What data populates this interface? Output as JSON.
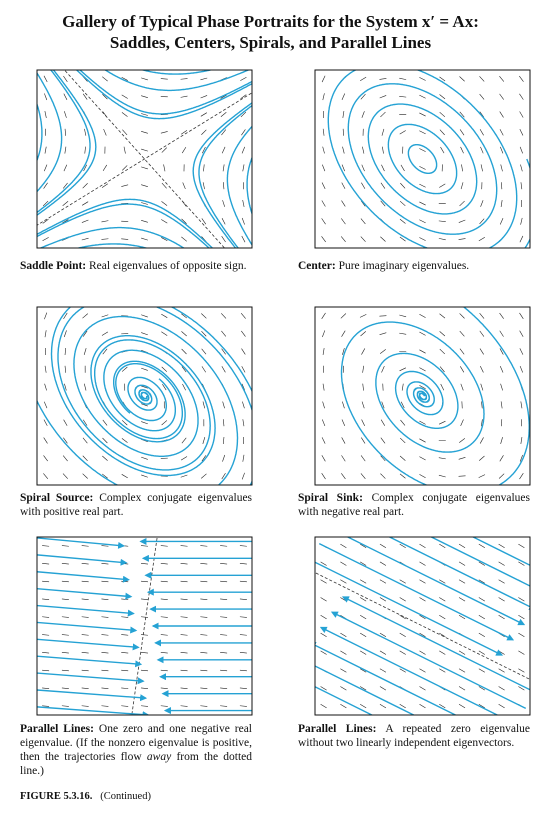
{
  "header": {
    "title_line1": "Gallery of Typical Phase Portraits for the System x′ = Ax:",
    "title_line2": "Saddles, Centers, Spirals, and Parallel Lines"
  },
  "panels": [
    {
      "label": "Saddle Point:",
      "text": "Real eigenvalues of opposite sign."
    },
    {
      "label": "Center:",
      "text": "Pure imaginary eigenvalues."
    },
    {
      "label": "Spiral Source:",
      "text": "Complex conjugate eigenvalues with positive real part."
    },
    {
      "label": "Spiral Sink:",
      "text": "Complex conjugate eigenvalues with negative real part."
    },
    {
      "label": "Parallel Lines:",
      "text": "One zero and one negative real eigenvalue. (If the nonzero eigenvalue is positive, then the trajectories flow",
      "emphasis": "away",
      "text_end": "from the dotted line.)"
    },
    {
      "label": "Parallel Lines:",
      "text": "A repeated zero eigenvalue without two linearly independent eigenvectors."
    }
  ],
  "figure": {
    "label": "FIGURE 5.3.16.",
    "note": "(Continued)"
  }
}
